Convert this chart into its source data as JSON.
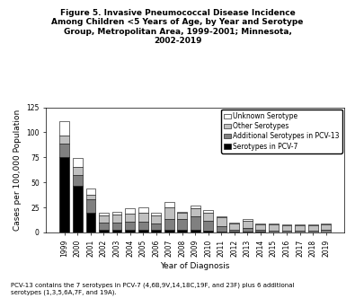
{
  "years": [
    1999,
    2000,
    2001,
    2002,
    2003,
    2004,
    2005,
    2006,
    2007,
    2008,
    2009,
    2010,
    2011,
    2012,
    2013,
    2014,
    2015,
    2016,
    2017,
    2018,
    2019
  ],
  "pcv7": [
    75,
    47,
    20,
    3,
    3,
    3,
    3,
    3,
    3,
    3,
    3,
    2,
    1,
    1,
    1,
    1,
    0,
    0,
    0,
    0,
    0
  ],
  "additional_pcv13": [
    14,
    10,
    13,
    7,
    7,
    8,
    8,
    6,
    10,
    10,
    13,
    10,
    5,
    2,
    3,
    2,
    2,
    2,
    2,
    2,
    3
  ],
  "other": [
    8,
    8,
    5,
    7,
    8,
    8,
    9,
    8,
    12,
    7,
    8,
    8,
    9,
    6,
    8,
    5,
    6,
    5,
    5,
    5,
    5
  ],
  "unknown": [
    14,
    9,
    6,
    3,
    3,
    5,
    5,
    3,
    5,
    1,
    3,
    2,
    1,
    1,
    1,
    1,
    1,
    1,
    1,
    1,
    1
  ],
  "color_pcv7": "#000000",
  "color_additional_pcv13": "#808080",
  "color_other": "#c0c0c0",
  "color_unknown": "#ffffff",
  "title": "Figure 5. Invasive Pneumococcal Disease Incidence\nAmong Children <5 Years of Age, by Year and Serotype\nGroup, Metropolitan Area, 1999-2001; Minnesota,\n2002-2019",
  "ylabel": "Cases per 100,000 Population",
  "xlabel": "Year of Diagnosis",
  "ylim": [
    0,
    125
  ],
  "yticks": [
    0,
    25,
    50,
    75,
    100,
    125
  ],
  "footnote": "PCV-13 contains the 7 serotypes in PCV-7 (4,6B,9V,14,18C,19F, and 23F) plus 6 additional\nserotypes (1,3,5,6A,7F, and 19A).",
  "legend_labels": [
    "Unknown Serotype",
    "Other Serotypes",
    "Additional Serotypes in PCV-13",
    "Serotypes in PCV-7"
  ],
  "legend_colors": [
    "#ffffff",
    "#c0c0c0",
    "#808080",
    "#000000"
  ],
  "title_fontsize": 6.5,
  "axis_label_fontsize": 6.5,
  "tick_fontsize": 5.5,
  "legend_fontsize": 5.5,
  "footnote_fontsize": 5.0,
  "bar_width": 0.75
}
